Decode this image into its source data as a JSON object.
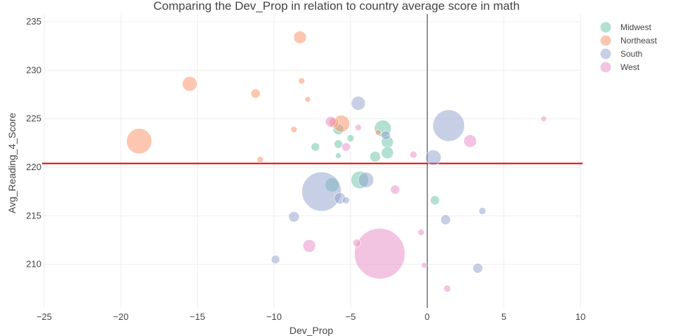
{
  "chart_data": {
    "type": "scatter",
    "title": "Comparing the Dev_Prop in relation to country average score in math",
    "xlabel": "Dev_Prop",
    "ylabel": "Avg_Reading_4_Score",
    "xlim": [
      -25,
      10
    ],
    "ylim": [
      205.5,
      235.8
    ],
    "x_ticks": [
      -25,
      -20,
      -15,
      -10,
      -5,
      0,
      5,
      10
    ],
    "y_ticks": [
      210,
      215,
      220,
      225,
      230,
      235
    ],
    "grid": true,
    "legend_position": "top-right",
    "reference_lines": {
      "vertical_x": 0,
      "horizontal_y": 220.4,
      "horizontal_color": "#e00000",
      "vertical_color": "#555555"
    },
    "series": [
      {
        "name": "Midwest",
        "color": "#66c2a5",
        "points": [
          {
            "x": -2.9,
            "y": 224.0,
            "size": 24
          },
          {
            "x": -4.4,
            "y": 218.7,
            "size": 25
          },
          {
            "x": -6.2,
            "y": 218.2,
            "size": 20
          },
          {
            "x": -2.6,
            "y": 222.6,
            "size": 17
          },
          {
            "x": -2.6,
            "y": 221.5,
            "size": 17
          },
          {
            "x": -3.4,
            "y": 221.1,
            "size": 15
          },
          {
            "x": -5.8,
            "y": 223.9,
            "size": 15
          },
          {
            "x": -7.3,
            "y": 222.1,
            "size": 12
          },
          {
            "x": -5.8,
            "y": 222.4,
            "size": 12
          },
          {
            "x": -5.0,
            "y": 223.0,
            "size": 10
          },
          {
            "x": 0.5,
            "y": 216.6,
            "size": 13
          },
          {
            "x": -5.8,
            "y": 221.2,
            "size": 8
          }
        ]
      },
      {
        "name": "Northeast",
        "color": "#fc8d62",
        "points": [
          {
            "x": -18.8,
            "y": 222.7,
            "size": 36
          },
          {
            "x": -15.5,
            "y": 228.6,
            "size": 21
          },
          {
            "x": -8.3,
            "y": 233.4,
            "size": 18
          },
          {
            "x": -5.6,
            "y": 224.5,
            "size": 24
          },
          {
            "x": -11.2,
            "y": 227.6,
            "size": 13
          },
          {
            "x": -6.1,
            "y": 224.6,
            "size": 14
          },
          {
            "x": -8.2,
            "y": 228.9,
            "size": 9
          },
          {
            "x": -7.8,
            "y": 227.0,
            "size": 8
          },
          {
            "x": -8.7,
            "y": 223.9,
            "size": 9
          },
          {
            "x": -10.9,
            "y": 220.8,
            "size": 9
          },
          {
            "x": -3.2,
            "y": 223.6,
            "size": 8
          }
        ]
      },
      {
        "name": "South",
        "color": "#8da0cb",
        "points": [
          {
            "x": -6.9,
            "y": 217.5,
            "size": 56
          },
          {
            "x": 1.4,
            "y": 224.3,
            "size": 45
          },
          {
            "x": -4.0,
            "y": 218.7,
            "size": 22
          },
          {
            "x": -4.5,
            "y": 226.6,
            "size": 20
          },
          {
            "x": 0.4,
            "y": 221.0,
            "size": 22
          },
          {
            "x": -5.7,
            "y": 216.8,
            "size": 16
          },
          {
            "x": -2.7,
            "y": 223.3,
            "size": 13
          },
          {
            "x": -5.3,
            "y": 216.6,
            "size": 10
          },
          {
            "x": -8.7,
            "y": 214.9,
            "size": 15
          },
          {
            "x": 1.2,
            "y": 214.6,
            "size": 14
          },
          {
            "x": 3.3,
            "y": 209.6,
            "size": 14
          },
          {
            "x": -9.9,
            "y": 210.5,
            "size": 12
          },
          {
            "x": 3.6,
            "y": 215.5,
            "size": 10
          }
        ]
      },
      {
        "name": "West",
        "color": "#e78ac3",
        "points": [
          {
            "x": -3.1,
            "y": 211.1,
            "size": 72
          },
          {
            "x": -7.7,
            "y": 211.9,
            "size": 18
          },
          {
            "x": 2.8,
            "y": 222.7,
            "size": 18
          },
          {
            "x": -6.3,
            "y": 224.7,
            "size": 15
          },
          {
            "x": -2.1,
            "y": 217.7,
            "size": 13
          },
          {
            "x": -5.3,
            "y": 222.1,
            "size": 12
          },
          {
            "x": -4.6,
            "y": 212.2,
            "size": 11
          },
          {
            "x": -0.9,
            "y": 221.3,
            "size": 10
          },
          {
            "x": -0.4,
            "y": 213.3,
            "size": 9
          },
          {
            "x": 1.3,
            "y": 207.5,
            "size": 10
          },
          {
            "x": -0.2,
            "y": 209.9,
            "size": 8
          },
          {
            "x": -4.5,
            "y": 224.1,
            "size": 9
          },
          {
            "x": 7.6,
            "y": 225.0,
            "size": 8
          }
        ]
      }
    ]
  }
}
